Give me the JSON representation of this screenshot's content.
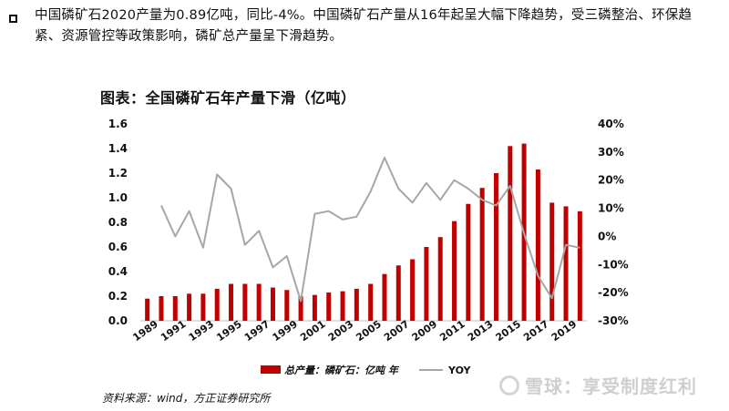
{
  "intro": {
    "text": "中国磷矿石2020产量为0.89亿吨，同比-4%。中国磷矿石产量从16年起呈大幅下降趋势，受三磷整治、环保趋紧、资源管控等政策影响，磷矿总产量呈下滑趋势。"
  },
  "chart_title": "图表：全国磷矿石年产量下滑（亿吨）",
  "source": "资料来源：wind，方正证券研究所",
  "watermark": "雪球：享受制度红利",
  "colors": {
    "bar": "#c00000",
    "line": "#a6a6a6",
    "axis_text": "#111111"
  },
  "chart_data": {
    "type": "bar+line",
    "title": "图表：全国磷矿石年产量下滑（亿吨）",
    "categories": [
      "1989",
      "1990",
      "1991",
      "1992",
      "1993",
      "1994",
      "1995",
      "1996",
      "1997",
      "1998",
      "1999",
      "2000",
      "2001",
      "2002",
      "2003",
      "2004",
      "2005",
      "2006",
      "2007",
      "2008",
      "2009",
      "2010",
      "2011",
      "2012",
      "2013",
      "2014",
      "2015",
      "2016",
      "2017",
      "2018",
      "2019",
      "2020"
    ],
    "x_tick_labels": [
      "1989",
      "1991",
      "1993",
      "1995",
      "1997",
      "1999",
      "2001",
      "2003",
      "2005",
      "2007",
      "2009",
      "2011",
      "2013",
      "2015",
      "2017",
      "2019"
    ],
    "series": [
      {
        "name": "总产量：磷矿石：亿吨 年",
        "type": "bar",
        "axis": "left",
        "values": [
          0.18,
          0.2,
          0.2,
          0.22,
          0.22,
          0.26,
          0.3,
          0.3,
          0.3,
          0.27,
          0.25,
          0.2,
          0.21,
          0.23,
          0.24,
          0.26,
          0.3,
          0.38,
          0.45,
          0.5,
          0.6,
          0.68,
          0.81,
          0.95,
          1.08,
          1.2,
          1.42,
          1.44,
          1.23,
          0.96,
          0.93,
          0.89
        ]
      },
      {
        "name": "YOY",
        "type": "line",
        "axis": "right",
        "values": [
          null,
          11,
          0,
          9,
          -4,
          22,
          17,
          -3,
          2,
          -11,
          -7,
          -23,
          8,
          9,
          6,
          7,
          16,
          28,
          17,
          12,
          19,
          13,
          20,
          17,
          13,
          11,
          18,
          1,
          -14,
          -22,
          -3,
          -4
        ]
      }
    ],
    "y_left": {
      "min": 0,
      "max": 1.6,
      "ticks": [
        "0.0",
        "0.2",
        "0.4",
        "0.6",
        "0.8",
        "1.0",
        "1.2",
        "1.4",
        "1.6"
      ]
    },
    "y_right": {
      "min": -30,
      "max": 40,
      "ticks": [
        "-30%",
        "-20%",
        "-10%",
        "0%",
        "10%",
        "20%",
        "30%",
        "40%"
      ]
    },
    "legend": {
      "bar_label": "总产量：磷矿石：亿吨 年",
      "line_label": "YOY",
      "position": "bottom"
    }
  }
}
